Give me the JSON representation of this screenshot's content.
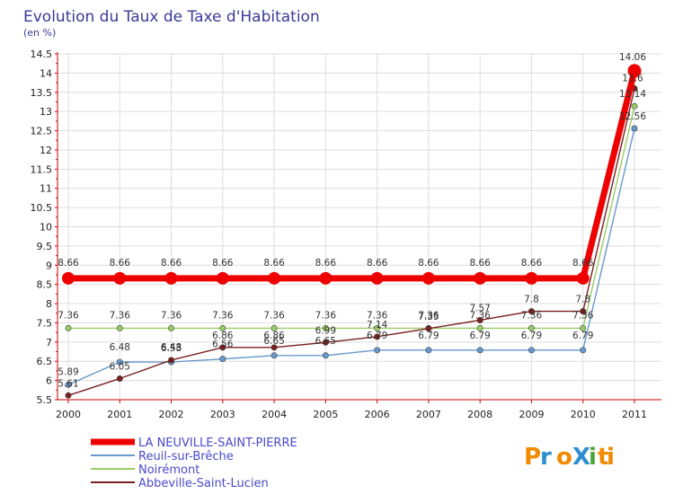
{
  "chart_data": {
    "type": "line",
    "title": "Evolution du Taux de Taxe d'Habitation",
    "subtitle": "(en %)",
    "categories": [
      "2000",
      "2001",
      "2002",
      "2003",
      "2004",
      "2005",
      "2006",
      "2007",
      "2008",
      "2009",
      "2010",
      "2011"
    ],
    "ylim": [
      5.5,
      14.5
    ],
    "yticks": [
      "5.5",
      "6",
      "6.5",
      "7",
      "7.5",
      "8",
      "8.5",
      "9",
      "9.5",
      "10",
      "10.5",
      "11",
      "11.5",
      "12",
      "12.5",
      "13",
      "13.5",
      "14",
      "14.5"
    ],
    "series": [
      {
        "name": "LA NEUVILLE-SAINT-PIERRE",
        "color": "#ee0000",
        "values": [
          8.66,
          8.66,
          8.66,
          8.66,
          8.66,
          8.66,
          8.66,
          8.66,
          8.66,
          8.66,
          8.66,
          14.06
        ],
        "labels": [
          "8.66",
          "8.66",
          "8.66",
          "8.66",
          "8.66",
          "8.66",
          "8.66",
          "8.66",
          "8.66",
          "8.66",
          "8.66",
          "14.06"
        ]
      },
      {
        "name": "Reuil-sur-Brêche",
        "color": "#6699cc",
        "values": [
          5.89,
          6.48,
          6.48,
          6.56,
          6.65,
          6.65,
          6.79,
          6.79,
          6.79,
          6.79,
          6.79,
          12.56
        ],
        "labels": [
          "5.89",
          "6.48",
          "6.48",
          "6.56",
          "6.65",
          "6.65",
          "6.79",
          "6.79",
          "6.79",
          "6.79",
          "6.79",
          "12.56"
        ]
      },
      {
        "name": "Noirémont",
        "color": "#99cc66",
        "values": [
          7.36,
          7.36,
          7.36,
          7.36,
          7.36,
          7.36,
          7.36,
          7.36,
          7.36,
          7.36,
          7.36,
          13.14
        ],
        "labels": [
          "7.36",
          "7.36",
          "7.36",
          "7.36",
          "7.36",
          "7.36",
          "7.36",
          "7.36",
          "7.36",
          "7.36",
          "7.36",
          "13.14"
        ]
      },
      {
        "name": "Abbeville-Saint-Lucien",
        "color": "#7a1f1f",
        "values": [
          5.61,
          6.05,
          6.53,
          6.86,
          6.86,
          6.99,
          7.14,
          7.35,
          7.57,
          7.8,
          7.8,
          13.6
        ],
        "labels": [
          "5.61",
          "6.05",
          "6.53",
          "6.86",
          "6.86",
          "6.99",
          "7.14",
          "7.35",
          "7.57",
          "7.8",
          "7.8",
          "13.6"
        ]
      }
    ]
  },
  "logo": {
    "text": "ProXiti"
  }
}
